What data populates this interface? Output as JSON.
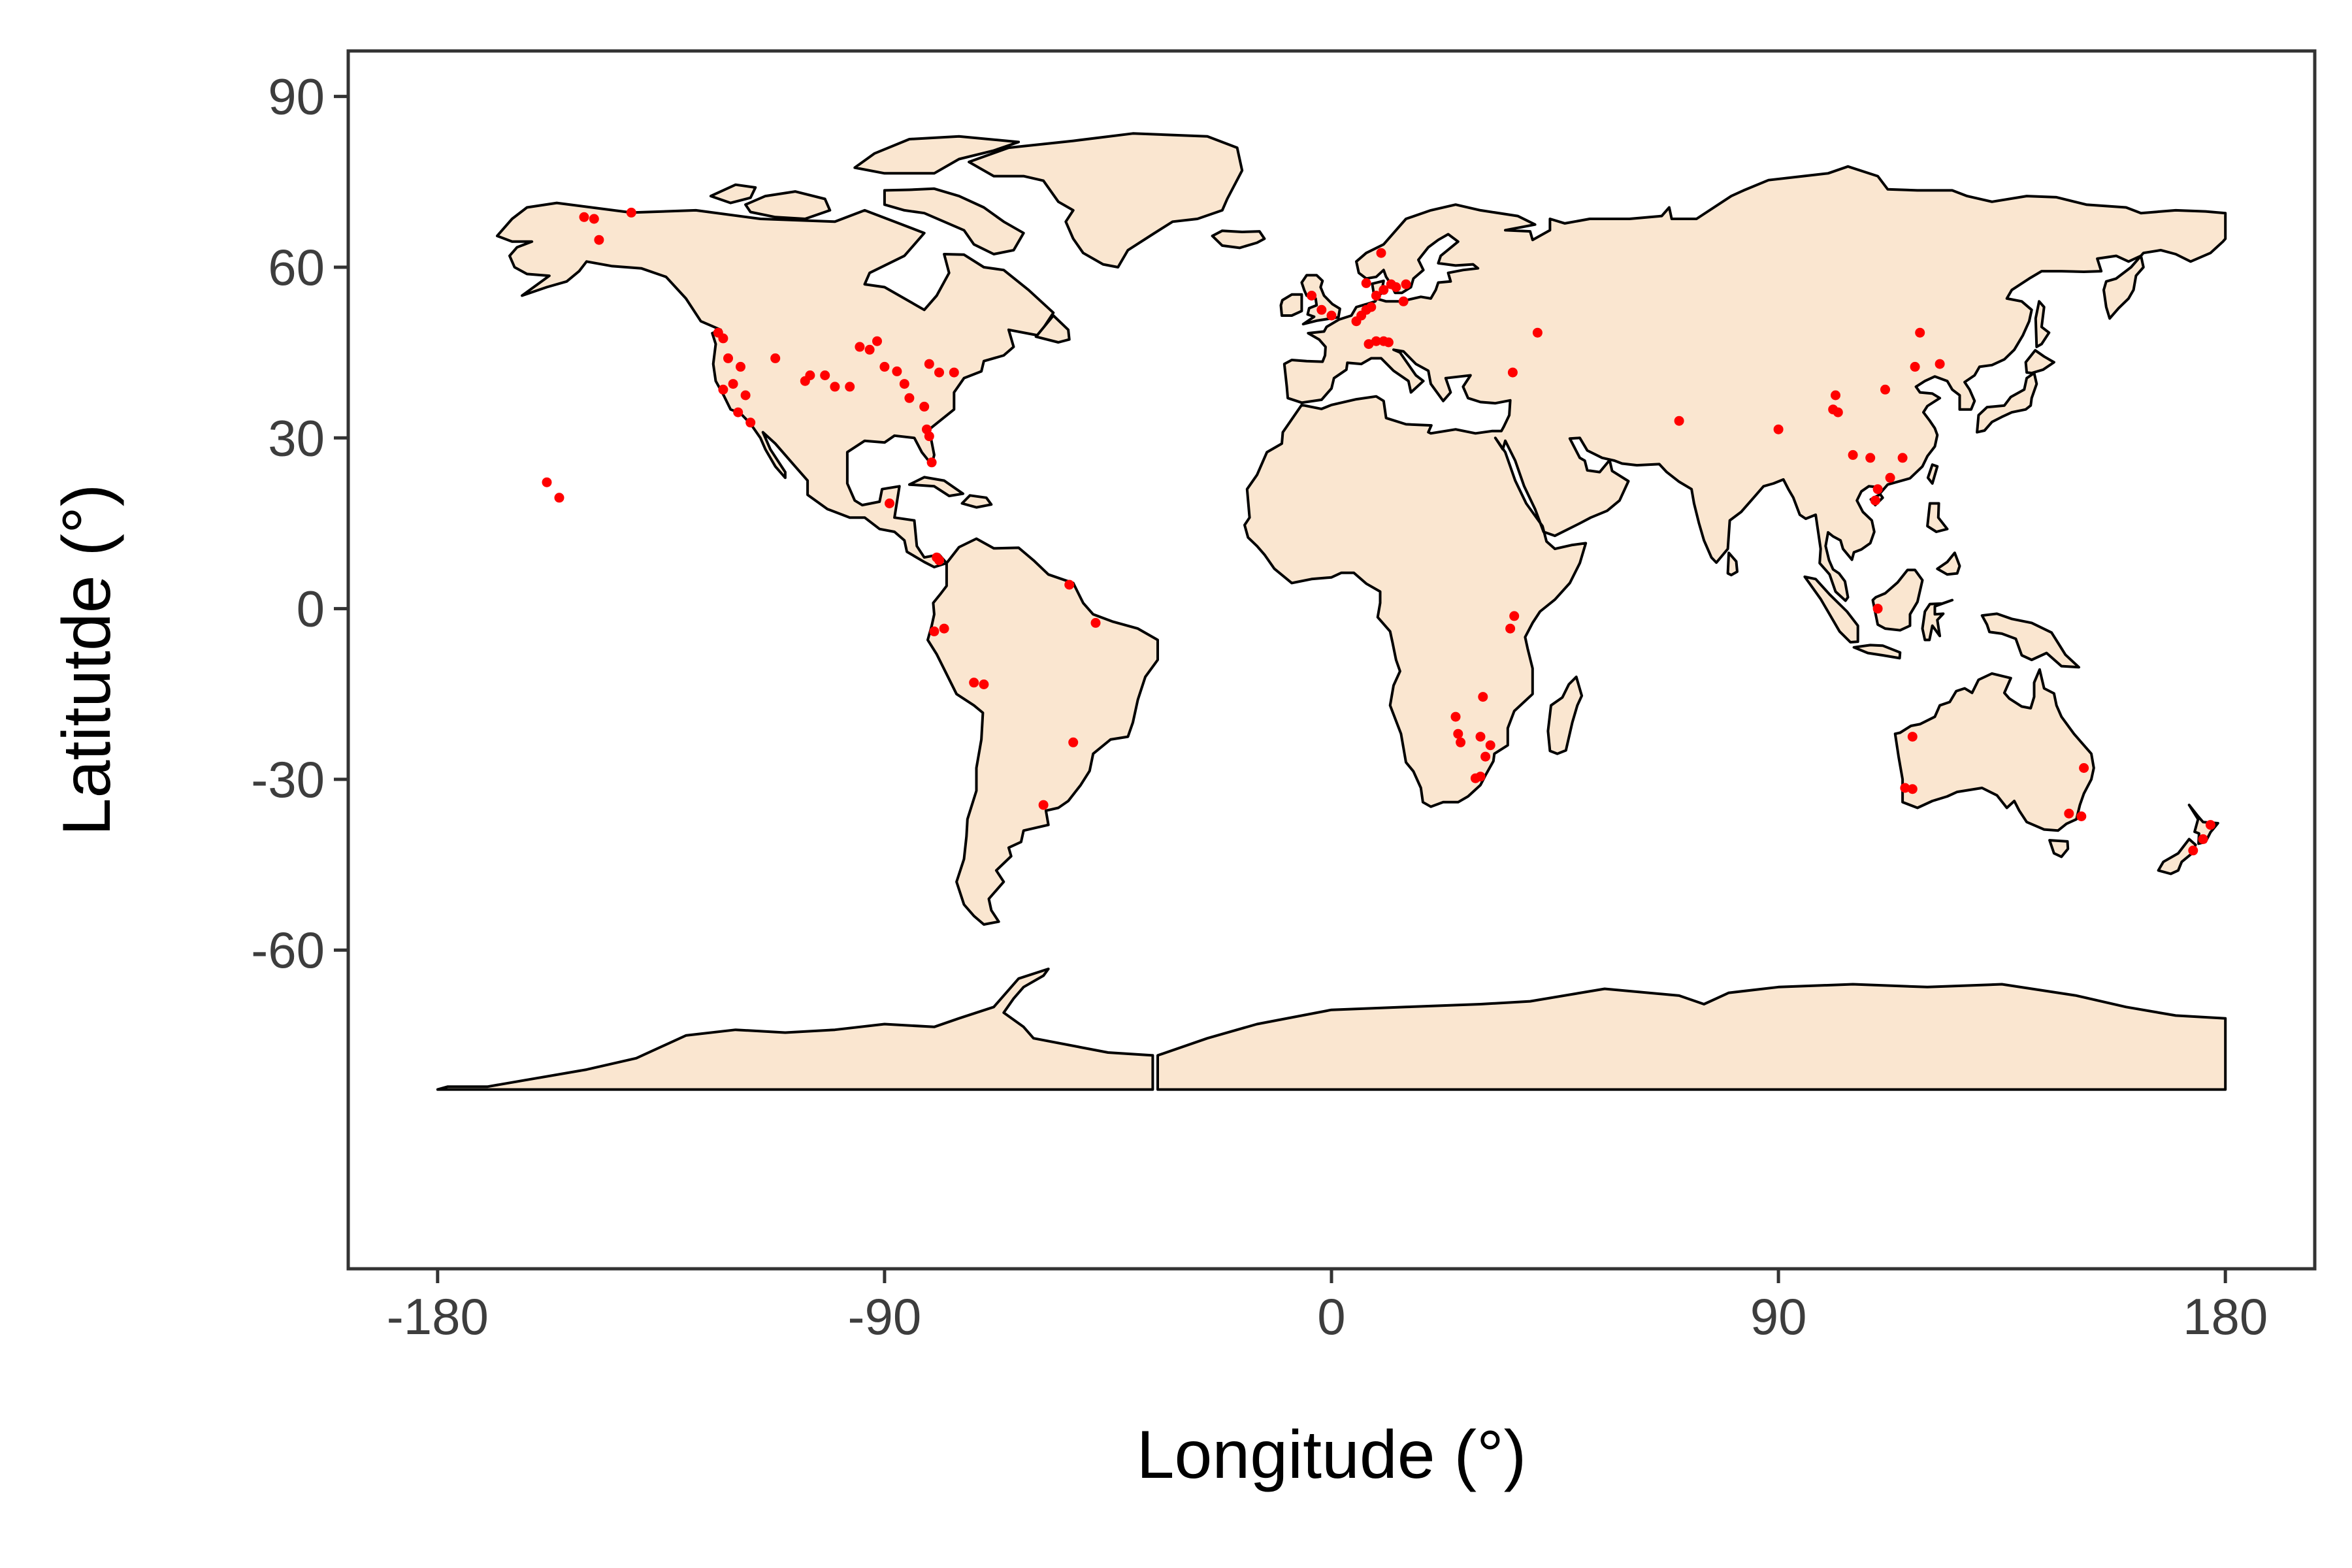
{
  "chart_data": {
    "type": "scatter",
    "xlabel": "Longitude (°)",
    "ylabel": "Latitutde (°)",
    "xlim": [
      -198,
      198
    ],
    "ylim": [
      -116,
      98
    ],
    "xticks": [
      -180,
      -90,
      0,
      90,
      180
    ],
    "yticks": [
      90,
      60,
      30,
      0,
      -30,
      -60
    ],
    "grid": false,
    "background": "#ffffff",
    "land_color": "#FAE6D0",
    "border_color": "#000000",
    "point_color": "#FF0000",
    "points": [
      [
        -150.5,
        68.8
      ],
      [
        -148.5,
        68.5
      ],
      [
        -147.5,
        64.8
      ],
      [
        -141,
        69.6
      ],
      [
        -123.5,
        48.5
      ],
      [
        -122.5,
        47.5
      ],
      [
        -121.5,
        44
      ],
      [
        -120.5,
        39.5
      ],
      [
        -122.5,
        38.5
      ],
      [
        -119,
        42.5
      ],
      [
        -118,
        37.5
      ],
      [
        -119.5,
        34.5
      ],
      [
        -117,
        32.7
      ],
      [
        -112,
        44
      ],
      [
        -106,
        40
      ],
      [
        -105,
        41
      ],
      [
        -102,
        41
      ],
      [
        -100,
        39
      ],
      [
        -97,
        39
      ],
      [
        -95,
        46
      ],
      [
        -93,
        45.5
      ],
      [
        -91.5,
        47
      ],
      [
        -90,
        42.5
      ],
      [
        -87.5,
        41.7
      ],
      [
        -86,
        39.5
      ],
      [
        -85,
        37
      ],
      [
        -82,
        35.5
      ],
      [
        -81,
        43
      ],
      [
        -79,
        41.5
      ],
      [
        -76,
        41.5
      ],
      [
        -81.5,
        31.5
      ],
      [
        -81,
        30.3
      ],
      [
        -80.5,
        25.7
      ],
      [
        -89,
        18.5
      ],
      [
        -79.5,
        9
      ],
      [
        -79,
        8.5
      ],
      [
        -158,
        22.2
      ],
      [
        -155.5,
        19.5
      ],
      [
        -52.8,
        4.2
      ],
      [
        -47.5,
        -2.5
      ],
      [
        -80,
        -4
      ],
      [
        -78,
        -3.5
      ],
      [
        -72,
        -13
      ],
      [
        -70,
        -13.3
      ],
      [
        -52,
        -23.5
      ],
      [
        -58,
        -34.5
      ],
      [
        -4,
        55
      ],
      [
        -2,
        52.5
      ],
      [
        0,
        51.5
      ],
      [
        5,
        50.5
      ],
      [
        6,
        51.5
      ],
      [
        7,
        52.5
      ],
      [
        8,
        53
      ],
      [
        9,
        55
      ],
      [
        10.5,
        56
      ],
      [
        12,
        57
      ],
      [
        13,
        56.5
      ],
      [
        15,
        57
      ],
      [
        10,
        62.5
      ],
      [
        7,
        57.2
      ],
      [
        7.5,
        46.5
      ],
      [
        9,
        47
      ],
      [
        10.5,
        47
      ],
      [
        11.5,
        46.8
      ],
      [
        14.5,
        54
      ],
      [
        36.5,
        41.5
      ],
      [
        41.5,
        48.5
      ],
      [
        30.5,
        -15.5
      ],
      [
        25,
        -19
      ],
      [
        25.5,
        -22
      ],
      [
        26,
        -23.5
      ],
      [
        30,
        -22.5
      ],
      [
        32,
        -24
      ],
      [
        31,
        -26
      ],
      [
        30,
        -29.5
      ],
      [
        29,
        -29.8
      ],
      [
        36.8,
        -1.3
      ],
      [
        36,
        -3.5
      ],
      [
        70,
        33
      ],
      [
        90,
        31.5
      ],
      [
        101.5,
        37.5
      ],
      [
        101,
        35
      ],
      [
        102,
        34.5
      ],
      [
        105,
        27
      ],
      [
        108.5,
        26.5
      ],
      [
        111.5,
        38.5
      ],
      [
        115,
        26.5
      ],
      [
        112.5,
        23
      ],
      [
        110,
        21
      ],
      [
        109.5,
        19
      ],
      [
        117.5,
        42.5
      ],
      [
        118.5,
        48.5
      ],
      [
        122.5,
        43
      ],
      [
        110,
        0
      ],
      [
        117,
        -22.5
      ],
      [
        115.5,
        -31.5
      ],
      [
        117,
        -31.7
      ],
      [
        148.5,
        -36
      ],
      [
        151,
        -36.5
      ],
      [
        151.5,
        -28
      ],
      [
        173.5,
        -42.5
      ],
      [
        175.5,
        -40.5
      ],
      [
        177,
        -38
      ]
    ]
  }
}
